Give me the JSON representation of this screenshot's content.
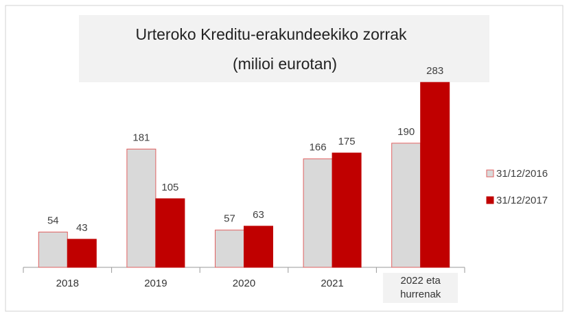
{
  "chart_data": {
    "type": "bar",
    "title": "Urteroko Kreditu-erakundeekiko zorrak",
    "subtitle": "(milioi eurotan)",
    "categories": [
      "2018",
      "2019",
      "2020",
      "2021",
      "2022 eta hurrenak"
    ],
    "series": [
      {
        "name": "31/12/2016",
        "color": "#d9d9d9",
        "values": [
          54,
          181,
          57,
          166,
          190
        ]
      },
      {
        "name": "31/12/2017",
        "color": "#c00000",
        "values": [
          43,
          105,
          63,
          175,
          283
        ]
      }
    ],
    "ylim": [
      0,
      300
    ],
    "legend": "right"
  }
}
